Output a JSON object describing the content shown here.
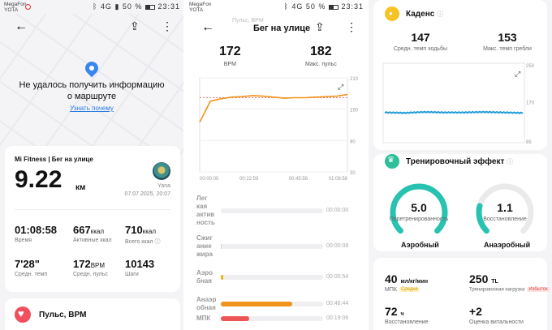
{
  "status_bar": {
    "carrier": "MegaFon",
    "carrier2": "YOTA",
    "network": "4G",
    "battery": "50 %",
    "time": "23:31"
  },
  "panel1": {
    "no_route_line1": "Не удалось получить информацию",
    "no_route_line2": "о маршруте",
    "learn_why": "Узнать почему",
    "workout_title": "Mi Fitness | Бег на улице",
    "distance": "9.22",
    "distance_unit": "км",
    "user_name": "Yana",
    "date": "07.07.2025, 20:07",
    "metrics": [
      {
        "value": "01:08:58",
        "unit": "",
        "label": "Время"
      },
      {
        "value": "667",
        "unit": "ккал",
        "label": "Активные ккал"
      },
      {
        "value": "710",
        "unit": "ккал",
        "label": "Всего ккал"
      },
      {
        "value": "7'28\"",
        "unit": "",
        "label": "Средн. темп"
      },
      {
        "value": "172",
        "unit": "BPM",
        "label": "Средн. пульс"
      },
      {
        "value": "10143",
        "unit": "",
        "label": "Шаги"
      }
    ],
    "hr_section": "Пульс, BPM"
  },
  "panel2": {
    "ghost_title": "Пульс, BPM",
    "title": "Бег на улице",
    "avg_hr": "172",
    "avg_hr_label": "BPM",
    "max_hr": "182",
    "max_hr_label": "Макс. пульс",
    "y_ticks": [
      "210",
      "150",
      "90",
      "30"
    ],
    "x_ticks": [
      "00:00:00",
      "00:22:59",
      "00:45:58",
      "01:08:58"
    ],
    "zones": [
      {
        "label_lines": [
          "Лег",
          "кая",
          "актив",
          "ность"
        ],
        "time": "00:00:00",
        "fraction": 0,
        "color": "#cfcfd4"
      },
      {
        "label_lines": [
          "Сжиг",
          "ание",
          "жира"
        ],
        "time": "00:00:08",
        "fraction": 0.002,
        "color": "#cfcfd4"
      },
      {
        "label_lines": [
          "Аэро",
          "бная"
        ],
        "time": "00:00:54",
        "fraction": 0.013,
        "color": "#f2b21f"
      },
      {
        "label_lines": [
          "Анаэр",
          "обная"
        ],
        "time": "00:48:44",
        "fraction": 0.7,
        "color": "#f0921c"
      },
      {
        "label_lines": [
          "МПК"
        ],
        "time": "00:19:06",
        "fraction": 0.28,
        "color": "#ee5556"
      }
    ]
  },
  "panel3": {
    "cadence_title": "Каденс",
    "cadence_info": "ⓘ",
    "avg_walk_pace": "147",
    "avg_walk_pace_label": "Средн. темп ходьбы",
    "max_stroke_pace": "153",
    "max_stroke_pace_label": "Макс. темп гребли",
    "cadence_y_ticks": [
      "250",
      "170",
      "85"
    ],
    "effect_title": "Тренировочный эффект",
    "effect_info": "ⓘ",
    "aerobic_value": "5.0",
    "aerobic_status": "Перетренированность",
    "aerobic_label": "Аэробный",
    "anaerobic_value": "1.1",
    "anaerobic_status": "Восстановление",
    "anaerobic_label": "Анаэробный",
    "vo2": "40",
    "vo2_unit": "мл/кг/мин",
    "vo2_label": "МПК",
    "vo2_tag": "Средне",
    "load": "250",
    "load_unit": "TL",
    "load_label": "Тренировочная нагрузка",
    "load_tag": "Избыток",
    "recovery": "72",
    "recovery_unit": "ч",
    "recovery_label": "Восстановление",
    "vitality": "+2",
    "vitality_label": "Оценка витальности"
  },
  "colors": {
    "accent_teal": "#27c2b0",
    "hr_orange": "#f0921c",
    "cadence_blue": "#1f9bd6",
    "link_blue": "#2a7ae4"
  },
  "chart_data": [
    {
      "type": "line",
      "title": "",
      "xlabel": "",
      "ylabel": "",
      "x": [
        "00:00:00",
        "00:05:00",
        "00:10:00",
        "00:15:00",
        "00:20:00",
        "00:25:00",
        "00:30:00",
        "00:35:00",
        "00:40:00",
        "00:45:00",
        "00:50:00",
        "00:55:00",
        "01:00:00",
        "01:05:00",
        "01:08:58"
      ],
      "series": [
        {
          "values": [
            125,
            165,
            170,
            173,
            174,
            176,
            175,
            173,
            171,
            172,
            172,
            173,
            174,
            175,
            178
          ]
        }
      ],
      "reference_line": 172,
      "ylim": [
        30,
        210
      ],
      "yticks": [
        210,
        150,
        90,
        30
      ]
    },
    {
      "type": "line",
      "title": "",
      "xlabel": "",
      "ylabel": "",
      "x": [
        "00:00:00",
        "00:10:00",
        "00:20:00",
        "00:30:00",
        "00:40:00",
        "00:50:00",
        "01:00:00",
        "01:08:58"
      ],
      "series": [
        {
          "values": [
            147,
            146,
            148,
            147,
            147,
            148,
            147,
            146
          ]
        }
      ],
      "ylim": [
        85,
        250
      ],
      "yticks": [
        250,
        170,
        85
      ]
    }
  ]
}
